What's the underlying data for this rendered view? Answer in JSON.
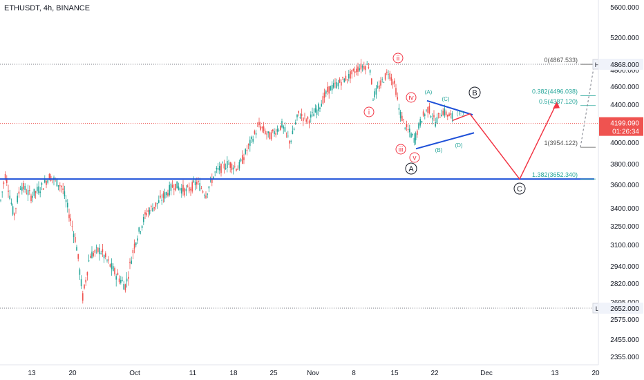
{
  "header": {
    "title": "ETHUSDT, 4h, BINANCE"
  },
  "colors": {
    "up": "#26a69a",
    "down": "#ef5350",
    "blue_line": "#1e50d8",
    "path": "#f23645",
    "wave": "#f23645",
    "sub_wave": "#26a69a",
    "fib_text": "#26a69a",
    "fib_gray": "#555555",
    "price_badge": "#ef5350"
  },
  "chart_data": {
    "type": "candlestick",
    "x_ticks": [
      "13",
      "20",
      "Oct",
      "11",
      "18",
      "25",
      "Nov",
      "8",
      "15",
      "22",
      "Dec",
      "13",
      "20"
    ],
    "y_ticks": [
      "5600.000",
      "5200.000",
      "4800.000",
      "4600.000",
      "4400.000",
      "4000.000",
      "3800.000",
      "3600.000",
      "3400.000",
      "3250.000",
      "3100.000",
      "2940.000",
      "2820.000",
      "2695.000",
      "2575.000",
      "2455.000",
      "2355.000"
    ],
    "price_levels": {
      "high": {
        "label": "High",
        "value": "4868.000"
      },
      "current": {
        "value": "4199.090",
        "countdown": "01:26:34"
      },
      "low": {
        "label": "Low",
        "value": "2652.000"
      }
    },
    "fibonacci": [
      {
        "label": "0(4867.533)",
        "value": 4867.533
      },
      {
        "label": "0.382(4496.038)",
        "value": 4496.038
      },
      {
        "label": "0.5(4387.120)",
        "value": 4387.12
      },
      {
        "label": "1(3954.122)",
        "value": 3954.122
      },
      {
        "label": "1.382(3652.340)",
        "value": 3652.34
      }
    ],
    "wave_labels": {
      "impulse": [
        "i",
        "ii",
        "iii",
        "iv",
        "v"
      ],
      "triangle": [
        "(A)",
        "(B)",
        "(C)",
        "(D)",
        "(E)"
      ],
      "corrective": [
        "A",
        "B",
        "C"
      ]
    },
    "support_level": 3652.34,
    "projection": {
      "points": [
        {
          "date": "Nov 26",
          "price": 4230
        },
        {
          "date": "Nov 28",
          "price": 4300
        },
        {
          "date": "Dec 6",
          "price": 3652
        },
        {
          "date": "Dec 13",
          "price": 4420
        }
      ]
    }
  }
}
